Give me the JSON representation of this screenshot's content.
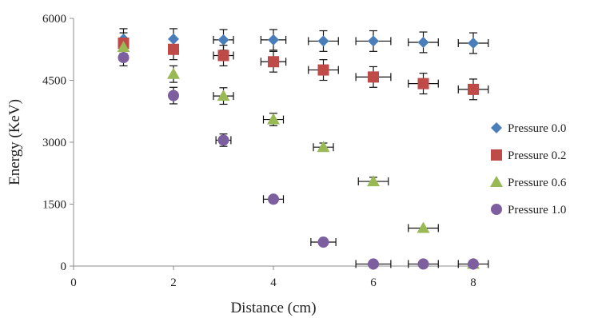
{
  "chart_data": {
    "type": "scatter",
    "title": "",
    "xlabel": "Distance (cm)",
    "ylabel": "Energy (KeV)",
    "xlim": [
      0,
      8
    ],
    "ylim": [
      0,
      6000
    ],
    "x_ticks": [
      "0",
      "2",
      "4",
      "6",
      "8"
    ],
    "y_ticks": [
      "0",
      "1500",
      "3000",
      "4500",
      "6000"
    ],
    "grid": false,
    "legend_position": "right",
    "series": [
      {
        "name": "Pressure 0.0",
        "marker": "diamond",
        "color": "#4a7ebb",
        "points": [
          {
            "x": 1,
            "y": 5500,
            "xerr": 0,
            "yerr": 250
          },
          {
            "x": 2,
            "y": 5500,
            "xerr": 0,
            "yerr": 250
          },
          {
            "x": 3,
            "y": 5480,
            "xerr": 0.2,
            "yerr": 250
          },
          {
            "x": 4,
            "y": 5480,
            "xerr": 0.25,
            "yerr": 250
          },
          {
            "x": 5,
            "y": 5450,
            "xerr": 0.3,
            "yerr": 250
          },
          {
            "x": 6,
            "y": 5450,
            "xerr": 0.35,
            "yerr": 250
          },
          {
            "x": 7,
            "y": 5420,
            "xerr": 0.3,
            "yerr": 250
          },
          {
            "x": 8,
            "y": 5400,
            "xerr": 0.3,
            "yerr": 250
          }
        ]
      },
      {
        "name": "Pressure 0.2",
        "marker": "square",
        "color": "#be4b48",
        "points": [
          {
            "x": 1,
            "y": 5400,
            "xerr": 0,
            "yerr": 250
          },
          {
            "x": 2,
            "y": 5250,
            "xerr": 0,
            "yerr": 250
          },
          {
            "x": 3,
            "y": 5100,
            "xerr": 0.2,
            "yerr": 250
          },
          {
            "x": 4,
            "y": 4950,
            "xerr": 0.25,
            "yerr": 250
          },
          {
            "x": 5,
            "y": 4750,
            "xerr": 0.3,
            "yerr": 250
          },
          {
            "x": 6,
            "y": 4580,
            "xerr": 0.35,
            "yerr": 250
          },
          {
            "x": 7,
            "y": 4420,
            "xerr": 0.3,
            "yerr": 250
          },
          {
            "x": 8,
            "y": 4280,
            "xerr": 0.3,
            "yerr": 250
          }
        ]
      },
      {
        "name": "Pressure 0.6",
        "marker": "triangle",
        "color": "#98b954",
        "points": [
          {
            "x": 1,
            "y": 5300,
            "xerr": 0,
            "yerr": 200
          },
          {
            "x": 2,
            "y": 4650,
            "xerr": 0,
            "yerr": 200
          },
          {
            "x": 3,
            "y": 4120,
            "xerr": 0.2,
            "yerr": 200
          },
          {
            "x": 4,
            "y": 3550,
            "xerr": 0.2,
            "yerr": 150
          },
          {
            "x": 5,
            "y": 2880,
            "xerr": 0.2,
            "yerr": 100
          },
          {
            "x": 6,
            "y": 2050,
            "xerr": 0.3,
            "yerr": 100
          },
          {
            "x": 7,
            "y": 920,
            "xerr": 0.3,
            "yerr": 0
          },
          {
            "x": 8,
            "y": 50,
            "xerr": 0,
            "yerr": 0
          }
        ]
      },
      {
        "name": "Pressure 1.0",
        "marker": "circle",
        "color": "#7d5fa0",
        "points": [
          {
            "x": 1,
            "y": 5050,
            "xerr": 0,
            "yerr": 200
          },
          {
            "x": 2,
            "y": 4130,
            "xerr": 0,
            "yerr": 200
          },
          {
            "x": 3,
            "y": 3050,
            "xerr": 0.15,
            "yerr": 150
          },
          {
            "x": 4,
            "y": 1620,
            "xerr": 0.2,
            "yerr": 0
          },
          {
            "x": 5,
            "y": 580,
            "xerr": 0.25,
            "yerr": 0
          },
          {
            "x": 6,
            "y": 50,
            "xerr": 0.35,
            "yerr": 0
          },
          {
            "x": 7,
            "y": 50,
            "xerr": 0.3,
            "yerr": 0
          },
          {
            "x": 8,
            "y": 50,
            "xerr": 0.3,
            "yerr": 0
          }
        ]
      }
    ]
  }
}
